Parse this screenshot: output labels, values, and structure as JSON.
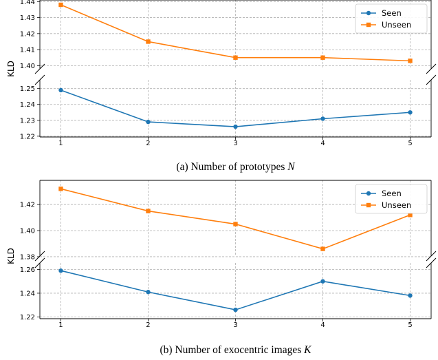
{
  "chart_data": [
    {
      "type": "line",
      "caption_prefix": "(a) Number of prototypes ",
      "caption_var": "N",
      "ylabel": "KLD",
      "x": [
        1,
        2,
        3,
        4,
        5
      ],
      "broken_y_axis": true,
      "grid": true,
      "legend_position": "top-right",
      "series": [
        {
          "name": "Seen",
          "color": "#1f77b4",
          "marker": "circle",
          "values": [
            1.249,
            1.229,
            1.226,
            1.231,
            1.235
          ]
        },
        {
          "name": "Unseen",
          "color": "#ff7f0e",
          "marker": "square",
          "values": [
            1.438,
            1.415,
            1.405,
            1.405,
            1.403
          ]
        }
      ],
      "upper_panel": {
        "ylim": [
          1.398,
          1.441
        ],
        "ticks": [
          "1.40",
          "1.41",
          "1.42",
          "1.43",
          "1.44"
        ]
      },
      "lower_panel": {
        "ylim": [
          1.2195,
          1.2555
        ],
        "ticks": [
          "1.22",
          "1.23",
          "1.24",
          "1.25"
        ]
      }
    },
    {
      "type": "line",
      "caption_prefix": "(b) Number of exocentric images ",
      "caption_var": "K",
      "ylabel": "KLD",
      "x": [
        1,
        2,
        3,
        4,
        5
      ],
      "broken_y_axis": true,
      "grid": true,
      "legend_position": "top-right",
      "series": [
        {
          "name": "Seen",
          "color": "#1f77b4",
          "marker": "circle",
          "values": [
            1.259,
            1.241,
            1.226,
            1.25,
            1.238
          ]
        },
        {
          "name": "Unseen",
          "color": "#ff7f0e",
          "marker": "square",
          "values": [
            1.432,
            1.415,
            1.405,
            1.386,
            1.412
          ]
        }
      ],
      "upper_panel": {
        "ylim": [
          1.3805,
          1.4385
        ],
        "ticks": [
          "1.38",
          "1.40",
          "1.42"
        ]
      },
      "lower_panel": {
        "ylim": [
          1.2185,
          1.2655
        ],
        "ticks": [
          "1.22",
          "1.24",
          "1.26"
        ]
      }
    }
  ]
}
